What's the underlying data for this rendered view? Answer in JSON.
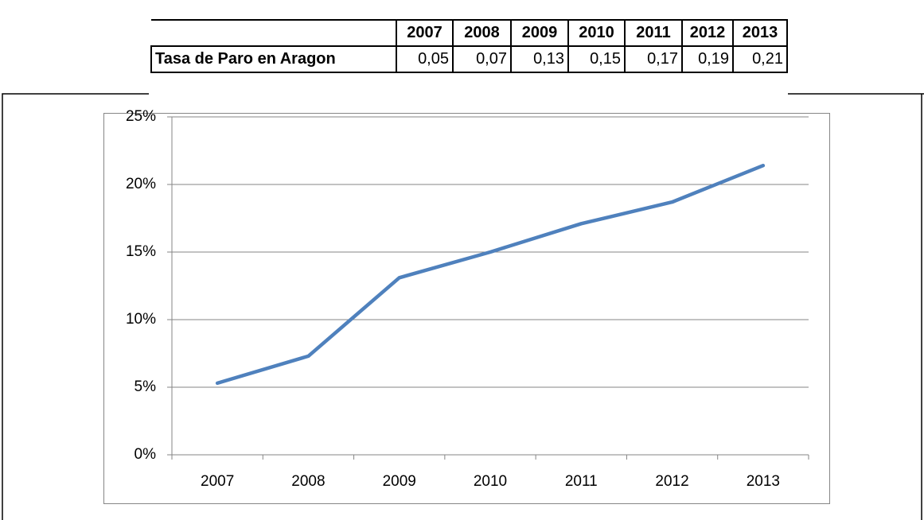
{
  "table": {
    "columns": [
      "2007",
      "2008",
      "2009",
      "2010",
      "2011",
      "2012",
      "2013"
    ],
    "rows": [
      [
        "Tasa de Paro en Aragon",
        "0,05",
        "0,07",
        "0,13",
        "0,15",
        "0,17",
        "0,19",
        "0,21"
      ]
    ]
  },
  "chart_data": {
    "type": "line",
    "categories": [
      "2007",
      "2008",
      "2009",
      "2010",
      "2011",
      "2012",
      "2013"
    ],
    "values": [
      5.3,
      7.3,
      13.1,
      15,
      17.1,
      18.7,
      21.4
    ],
    "color": "#4f81bd",
    "ylim": [
      0,
      25
    ],
    "yticks": [
      {
        "value": 0,
        "label": "0%"
      },
      {
        "value": 5,
        "label": "5%"
      },
      {
        "value": 10,
        "label": "10%"
      },
      {
        "value": 15,
        "label": "15%"
      },
      {
        "value": 20,
        "label": "20%"
      },
      {
        "value": 25,
        "label": "25%"
      }
    ],
    "grid": true
  }
}
